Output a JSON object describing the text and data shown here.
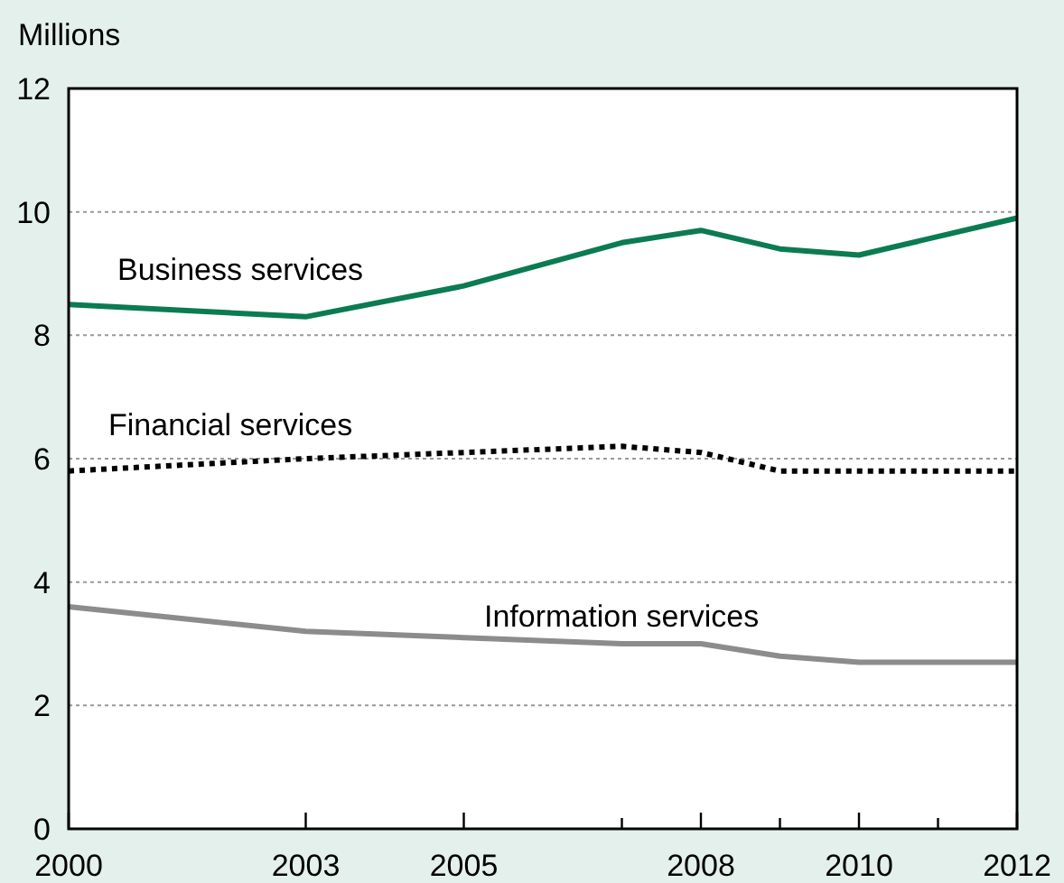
{
  "chart_data": {
    "type": "line",
    "ylabel": "Millions",
    "x": [
      2000,
      2003,
      2005,
      2007,
      2008,
      2009,
      2010,
      2012
    ],
    "xlim": [
      2000,
      2012
    ],
    "xticks": [
      2000,
      2003,
      2005,
      {
        "value": 2007,
        "label": null
      },
      2008,
      {
        "value": 2009,
        "label": null
      },
      2010,
      {
        "value": 2011,
        "label": null
      },
      2012
    ],
    "ylim": [
      0,
      12
    ],
    "yticks": [
      0,
      2,
      4,
      6,
      8,
      10,
      12
    ],
    "grid": "y",
    "legend": false,
    "marker": "none",
    "series": [
      {
        "name": "Business services",
        "color": "#0b7b52",
        "line_style": "solid",
        "values": [
          8.5,
          8.3,
          8.8,
          9.5,
          9.7,
          9.4,
          9.3,
          9.9
        ]
      },
      {
        "name": "Financial services",
        "color": "#000000",
        "line_style": "dotted",
        "values": [
          5.8,
          6.0,
          6.1,
          6.2,
          6.1,
          5.8,
          5.8,
          5.8
        ]
      },
      {
        "name": "Information services",
        "color": "#8c8c8c",
        "line_style": "solid",
        "values": [
          3.6,
          3.2,
          3.1,
          3.0,
          3.0,
          2.8,
          2.7,
          2.7
        ]
      }
    ]
  }
}
